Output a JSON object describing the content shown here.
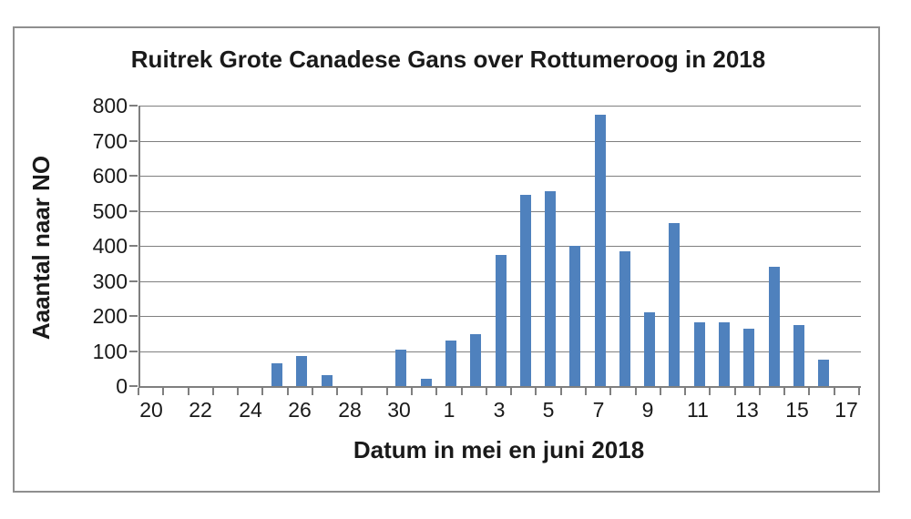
{
  "chart_data": {
    "type": "bar",
    "title": "Ruitrek Grote Canadese Gans over Rottumeroog in 2018",
    "xlabel": "Datum in mei en juni 2018",
    "ylabel": "Aaantal naar NO",
    "categories": [
      "20",
      "21",
      "22",
      "23",
      "24",
      "25",
      "26",
      "27",
      "28",
      "29",
      "30",
      "31",
      "1",
      "2",
      "3",
      "4",
      "5",
      "6",
      "7",
      "8",
      "9",
      "10",
      "11",
      "12",
      "13",
      "14",
      "15",
      "16",
      "17"
    ],
    "values": [
      0,
      0,
      0,
      0,
      0,
      65,
      85,
      32,
      0,
      0,
      105,
      20,
      130,
      148,
      375,
      545,
      555,
      400,
      775,
      385,
      210,
      465,
      183,
      183,
      163,
      340,
      175,
      75,
      0
    ],
    "visible_x_tick_labels": [
      "20",
      "22",
      "24",
      "26",
      "28",
      "30",
      "1",
      "3",
      "5",
      "7",
      "9",
      "11",
      "13",
      "15",
      "17"
    ],
    "y_ticks": [
      0,
      100,
      200,
      300,
      400,
      500,
      600,
      700,
      800
    ],
    "ylim": [
      0,
      800
    ],
    "grid": true,
    "legend": false,
    "bar_color": "#4F81BD",
    "axis_color": "#7f7f7f",
    "grid_color": "#7f7f7f",
    "frame_color": "#8f8f8f",
    "text_color": "#1a1a1a"
  }
}
